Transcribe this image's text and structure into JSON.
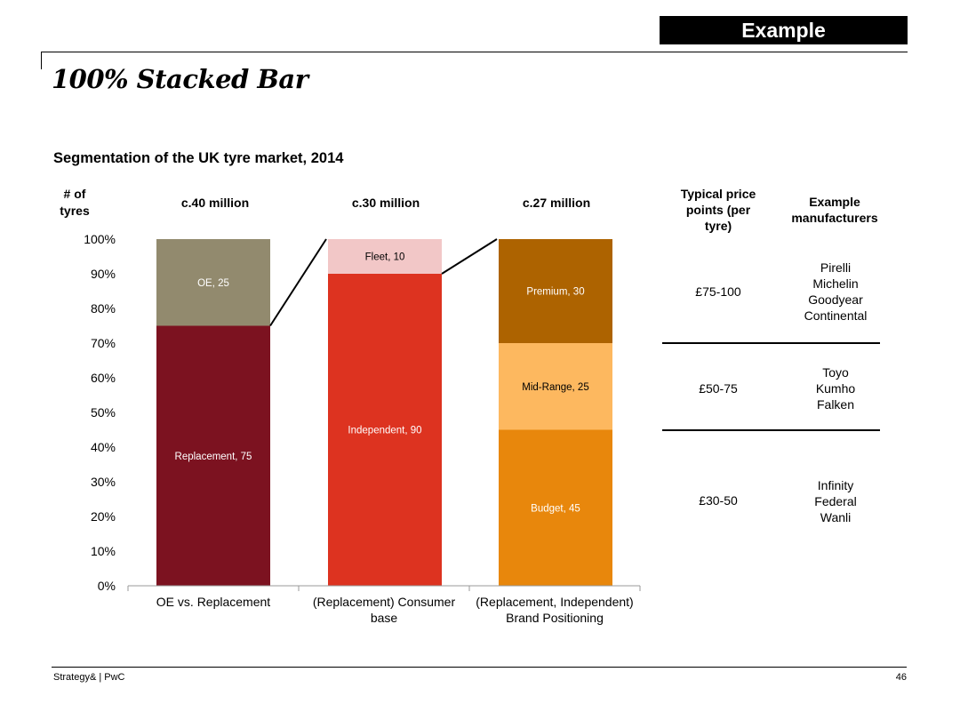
{
  "header": {
    "tag_label": "Example",
    "page_title": "100% Stacked Bar"
  },
  "chart_data": {
    "type": "bar",
    "stacked": true,
    "percent": true,
    "title": "Segmentation of the UK tyre market, 2014",
    "ylabel": "# of tyres",
    "ylim": [
      0,
      100
    ],
    "yticks": [
      "0%",
      "10%",
      "20%",
      "30%",
      "40%",
      "50%",
      "60%",
      "70%",
      "80%",
      "90%",
      "100%"
    ],
    "categories": [
      "OE vs. Replacement",
      "(Replacement) Consumer base",
      "(Replacement, Independent) Brand Positioning"
    ],
    "totals": [
      "c.40 million",
      "c.30 million",
      "c.27 million"
    ],
    "bars": [
      {
        "segments": [
          {
            "name": "Replacement",
            "value": 75,
            "color": "#7c1220",
            "label_color": "#ffffff"
          },
          {
            "name": "OE",
            "value": 25,
            "color": "#928a6e",
            "label_color": "#ffffff"
          }
        ]
      },
      {
        "segments": [
          {
            "name": "Independent",
            "value": 90,
            "color": "#dd3320",
            "label_color": "#ffffff"
          },
          {
            "name": "Fleet",
            "value": 10,
            "color": "#f2c7c7",
            "label_color": "#000000"
          }
        ]
      },
      {
        "segments": [
          {
            "name": "Budget",
            "value": 45,
            "color": "#e8870c",
            "label_color": "#ffffff"
          },
          {
            "name": "Mid-Range",
            "value": 25,
            "color": "#fdb85f",
            "label_color": "#000000"
          },
          {
            "name": "Premium",
            "value": 30,
            "color": "#ad6300",
            "label_color": "#ffffff"
          }
        ]
      }
    ]
  },
  "table": {
    "price_header": [
      "Typical price",
      "points (per",
      "tyre)"
    ],
    "mfr_header": [
      "Example",
      "manufacturers"
    ],
    "rows": [
      {
        "price": "£75-100",
        "manufacturers": [
          "Pirelli",
          "Michelin",
          "Goodyear",
          "Continental"
        ]
      },
      {
        "price": "£50-75",
        "manufacturers": [
          "Toyo",
          "Kumho",
          "Falken"
        ]
      },
      {
        "price": "£30-50",
        "manufacturers": [
          "Infinity",
          "Federal",
          "Wanli"
        ]
      }
    ]
  },
  "footer": {
    "source": "Strategy& | PwC",
    "page_number": "46"
  }
}
